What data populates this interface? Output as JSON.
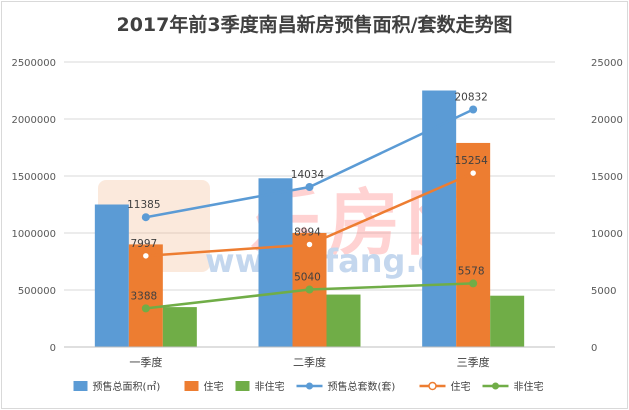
{
  "chart_data": {
    "type": "bar",
    "title": "2017年前3季度南昌新房预售面积/套数走势图",
    "categories": [
      "一季度",
      "二季度",
      "三季度"
    ],
    "left_axis": {
      "min": 0,
      "max": 2500000,
      "step": 500000
    },
    "right_axis": {
      "min": 0,
      "max": 25000,
      "step": 5000
    },
    "grid": true,
    "legend_position": "bottom",
    "bar_series": [
      {
        "name": "预售总面积(㎡)",
        "color": "#5b9bd5",
        "values": [
          1250000,
          1480000,
          2250000
        ]
      },
      {
        "name": "住宅",
        "color": "#ed7d31",
        "values": [
          900000,
          1000000,
          1790000
        ]
      },
      {
        "name": "非住宅",
        "color": "#70ad47",
        "values": [
          350000,
          460000,
          450000
        ]
      }
    ],
    "line_series": [
      {
        "name": "预售总套数(套)",
        "color": "#5b9bd5",
        "marker": "filled",
        "values": [
          11385,
          14034,
          20832
        ]
      },
      {
        "name": "住宅",
        "color": "#ed7d31",
        "marker": "hollow",
        "values": [
          7997,
          8994,
          15254
        ]
      },
      {
        "name": "非住宅",
        "color": "#70ad47",
        "marker": "filled",
        "values": [
          3388,
          5040,
          5578
        ]
      }
    ],
    "watermark": "www.Lfang.com"
  }
}
